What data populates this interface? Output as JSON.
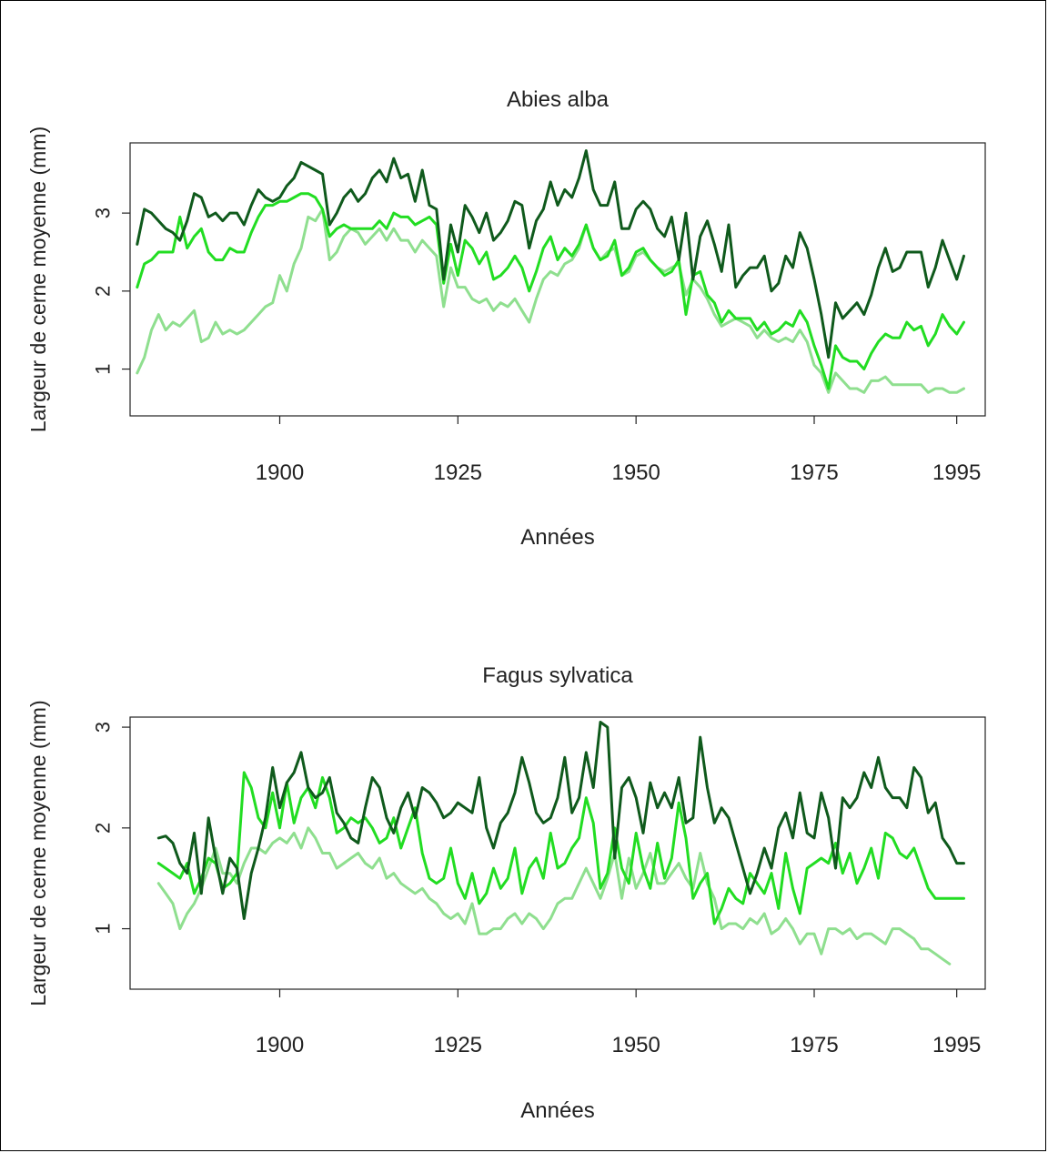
{
  "colors": {
    "dark": "#0f5a1c",
    "mid": "#22dd22",
    "light": "#8fdf8f",
    "axis": "#222222"
  },
  "chart_data": [
    {
      "type": "line",
      "title": "Abies alba",
      "xlabel": "Années",
      "ylabel": "Largeur de cerne moyenne (mm)",
      "xlim": [
        1879,
        1999
      ],
      "ylim": [
        0.4,
        3.9
      ],
      "xticks": [
        1900,
        1925,
        1950,
        1975,
        1995
      ],
      "yticks": [
        1,
        2,
        3
      ],
      "start_year": 1880,
      "series": [
        {
          "color_key": "dark",
          "values": [
            2.6,
            3.05,
            3.0,
            2.9,
            2.8,
            2.75,
            2.65,
            2.9,
            3.25,
            3.2,
            2.95,
            3.0,
            2.9,
            3.0,
            3.0,
            2.85,
            3.1,
            3.3,
            3.2,
            3.15,
            3.2,
            3.35,
            3.45,
            3.65,
            3.6,
            3.55,
            3.5,
            2.85,
            3.0,
            3.2,
            3.3,
            3.15,
            3.25,
            3.45,
            3.55,
            3.4,
            3.7,
            3.45,
            3.5,
            3.15,
            3.55,
            3.1,
            3.05,
            2.15,
            2.85,
            2.5,
            3.1,
            2.95,
            2.75,
            3.0,
            2.65,
            2.75,
            2.9,
            3.15,
            3.1,
            2.55,
            2.9,
            3.05,
            3.4,
            3.1,
            3.3,
            3.2,
            3.45,
            3.8,
            3.3,
            3.1,
            3.1,
            3.4,
            2.8,
            2.8,
            3.05,
            3.15,
            3.05,
            2.8,
            2.7,
            2.95,
            2.4,
            3.0,
            2.15,
            2.7,
            2.9,
            2.6,
            2.25,
            2.85,
            2.05,
            2.2,
            2.3,
            2.3,
            2.45,
            2.0,
            2.1,
            2.45,
            2.3,
            2.75,
            2.55,
            2.15,
            1.7,
            1.15,
            1.85,
            1.65,
            1.75,
            1.85,
            1.7,
            1.95,
            2.3,
            2.55,
            2.25,
            2.3,
            2.5,
            2.5,
            2.5,
            2.05,
            2.3,
            2.65,
            2.4,
            2.15,
            2.45
          ]
        },
        {
          "color_key": "mid",
          "values": [
            2.05,
            2.35,
            2.4,
            2.5,
            2.5,
            2.5,
            2.95,
            2.55,
            2.7,
            2.8,
            2.5,
            2.4,
            2.4,
            2.55,
            2.5,
            2.5,
            2.75,
            2.95,
            3.1,
            3.1,
            3.15,
            3.15,
            3.2,
            3.25,
            3.25,
            3.2,
            3.05,
            2.7,
            2.8,
            2.85,
            2.8,
            2.8,
            2.8,
            2.8,
            2.9,
            2.8,
            3.0,
            2.95,
            2.95,
            2.85,
            2.9,
            2.95,
            2.85,
            2.1,
            2.6,
            2.2,
            2.65,
            2.55,
            2.35,
            2.5,
            2.15,
            2.2,
            2.3,
            2.45,
            2.3,
            2.0,
            2.25,
            2.55,
            2.7,
            2.4,
            2.55,
            2.45,
            2.6,
            2.85,
            2.55,
            2.4,
            2.45,
            2.65,
            2.2,
            2.3,
            2.5,
            2.55,
            2.4,
            2.3,
            2.2,
            2.25,
            2.4,
            1.7,
            2.2,
            2.25,
            1.95,
            1.85,
            1.6,
            1.75,
            1.65,
            1.65,
            1.65,
            1.5,
            1.6,
            1.45,
            1.5,
            1.6,
            1.55,
            1.75,
            1.6,
            1.3,
            1.05,
            0.75,
            1.3,
            1.15,
            1.1,
            1.1,
            1.0,
            1.2,
            1.35,
            1.45,
            1.4,
            1.4,
            1.6,
            1.5,
            1.55,
            1.3,
            1.45,
            1.7,
            1.55,
            1.45,
            1.6
          ]
        },
        {
          "color_key": "light",
          "values": [
            0.95,
            1.15,
            1.5,
            1.7,
            1.5,
            1.6,
            1.55,
            1.65,
            1.75,
            1.35,
            1.4,
            1.6,
            1.45,
            1.5,
            1.45,
            1.5,
            1.6,
            1.7,
            1.8,
            1.85,
            2.2,
            2.0,
            2.35,
            2.55,
            2.95,
            2.9,
            3.05,
            2.4,
            2.5,
            2.7,
            2.8,
            2.75,
            2.6,
            2.7,
            2.8,
            2.65,
            2.8,
            2.65,
            2.65,
            2.5,
            2.65,
            2.55,
            2.45,
            1.8,
            2.3,
            2.05,
            2.05,
            1.9,
            1.85,
            1.9,
            1.75,
            1.85,
            1.8,
            1.9,
            1.75,
            1.6,
            1.9,
            2.15,
            2.25,
            2.2,
            2.35,
            2.4,
            2.55,
            2.85,
            2.55,
            2.4,
            2.5,
            2.55,
            2.2,
            2.25,
            2.45,
            2.5,
            2.4,
            2.3,
            2.25,
            2.3,
            2.35,
            1.95,
            2.15,
            2.05,
            1.9,
            1.7,
            1.55,
            1.6,
            1.65,
            1.6,
            1.55,
            1.4,
            1.5,
            1.4,
            1.35,
            1.4,
            1.35,
            1.5,
            1.35,
            1.05,
            0.95,
            0.7,
            0.95,
            0.85,
            0.75,
            0.75,
            0.7,
            0.85,
            0.85,
            0.9,
            0.8,
            0.8,
            0.8,
            0.8,
            0.8,
            0.7,
            0.75,
            0.75,
            0.7,
            0.7,
            0.75
          ]
        }
      ]
    },
    {
      "type": "line",
      "title": "Fagus sylvatica",
      "xlabel": "Années",
      "ylabel": "Largeur de cerne moyenne (mm)",
      "xlim": [
        1879,
        1999
      ],
      "ylim": [
        0.4,
        3.1
      ],
      "xticks": [
        1900,
        1925,
        1950,
        1975,
        1995
      ],
      "yticks": [
        1,
        2,
        3
      ],
      "start_year": 1883,
      "series": [
        {
          "color_key": "dark",
          "values": [
            1.9,
            1.92,
            1.85,
            1.65,
            1.55,
            1.95,
            1.35,
            2.1,
            1.7,
            1.35,
            1.7,
            1.6,
            1.1,
            1.55,
            1.8,
            2.1,
            2.6,
            2.2,
            2.45,
            2.55,
            2.75,
            2.4,
            2.3,
            2.35,
            2.5,
            2.15,
            2.05,
            1.9,
            1.85,
            2.2,
            2.5,
            2.4,
            2.1,
            1.95,
            2.2,
            2.35,
            2.1,
            2.4,
            2.35,
            2.25,
            2.1,
            2.15,
            2.25,
            2.2,
            2.15,
            2.5,
            2.0,
            1.8,
            2.05,
            2.15,
            2.35,
            2.7,
            2.45,
            2.15,
            2.05,
            2.1,
            2.3,
            2.7,
            2.15,
            2.3,
            2.75,
            2.4,
            3.05,
            3.0,
            1.7,
            2.4,
            2.5,
            2.3,
            1.95,
            2.45,
            2.2,
            2.35,
            2.2,
            2.5,
            2.05,
            2.1,
            2.9,
            2.4,
            2.05,
            2.2,
            2.1,
            1.85,
            1.6,
            1.35,
            1.55,
            1.8,
            1.6,
            2.0,
            2.15,
            1.9,
            2.35,
            1.95,
            1.9,
            2.35,
            2.1,
            1.6,
            2.3,
            2.2,
            2.3,
            2.55,
            2.4,
            2.7,
            2.4,
            2.3,
            2.3,
            2.2,
            2.6,
            2.5,
            2.15,
            2.25,
            1.9,
            1.8,
            1.65,
            1.65
          ]
        },
        {
          "color_key": "mid",
          "values": [
            1.65,
            1.6,
            1.55,
            1.5,
            1.65,
            1.35,
            1.5,
            1.7,
            1.65,
            1.4,
            1.45,
            1.55,
            2.55,
            2.4,
            2.1,
            2.0,
            2.35,
            2.0,
            2.45,
            2.05,
            2.3,
            2.4,
            2.2,
            2.5,
            2.3,
            1.95,
            2.0,
            2.1,
            2.05,
            2.1,
            2.0,
            1.85,
            1.9,
            2.1,
            1.8,
            2.0,
            2.2,
            1.75,
            1.5,
            1.45,
            1.5,
            1.8,
            1.45,
            1.3,
            1.55,
            1.25,
            1.35,
            1.6,
            1.4,
            1.5,
            1.8,
            1.35,
            1.6,
            1.7,
            1.5,
            1.95,
            1.6,
            1.65,
            1.8,
            1.9,
            2.3,
            2.05,
            1.4,
            1.55,
            2.0,
            1.6,
            1.45,
            1.95,
            1.6,
            1.4,
            1.85,
            1.5,
            1.7,
            2.25,
            1.9,
            1.3,
            1.45,
            1.55,
            1.05,
            1.2,
            1.4,
            1.3,
            1.25,
            1.55,
            1.45,
            1.35,
            1.55,
            1.2,
            1.75,
            1.4,
            1.15,
            1.6,
            1.65,
            1.7,
            1.65,
            1.85,
            1.55,
            1.75,
            1.45,
            1.6,
            1.8,
            1.5,
            1.95,
            1.9,
            1.75,
            1.7,
            1.8,
            1.6,
            1.4,
            1.3,
            1.3,
            1.3,
            1.3,
            1.3
          ]
        },
        {
          "color_key": "light",
          "values": [
            1.45,
            1.35,
            1.25,
            1.0,
            1.15,
            1.25,
            1.4,
            1.6,
            1.8,
            1.55,
            1.55,
            1.45,
            1.65,
            1.8,
            1.8,
            1.75,
            1.85,
            1.9,
            1.85,
            1.95,
            1.8,
            2.0,
            1.9,
            1.75,
            1.75,
            1.6,
            1.65,
            1.7,
            1.75,
            1.65,
            1.6,
            1.7,
            1.5,
            1.55,
            1.45,
            1.4,
            1.35,
            1.4,
            1.3,
            1.25,
            1.15,
            1.1,
            1.15,
            1.05,
            1.25,
            0.95,
            0.95,
            1.0,
            1.0,
            1.1,
            1.15,
            1.05,
            1.15,
            1.1,
            1.0,
            1.1,
            1.25,
            1.3,
            1.3,
            1.45,
            1.6,
            1.45,
            1.3,
            1.5,
            1.75,
            1.3,
            1.7,
            1.4,
            1.55,
            1.75,
            1.45,
            1.45,
            1.55,
            1.65,
            1.5,
            1.4,
            1.75,
            1.45,
            1.3,
            1.0,
            1.05,
            1.05,
            1.0,
            1.1,
            1.05,
            1.15,
            0.95,
            1.0,
            1.1,
            1.0,
            0.85,
            0.95,
            0.95,
            0.75,
            1.0,
            1.0,
            0.95,
            1.0,
            0.9,
            0.95,
            0.95,
            0.9,
            0.85,
            1.0,
            1.0,
            0.95,
            0.9,
            0.8,
            0.8,
            0.75,
            0.7,
            0.65
          ]
        }
      ]
    }
  ]
}
